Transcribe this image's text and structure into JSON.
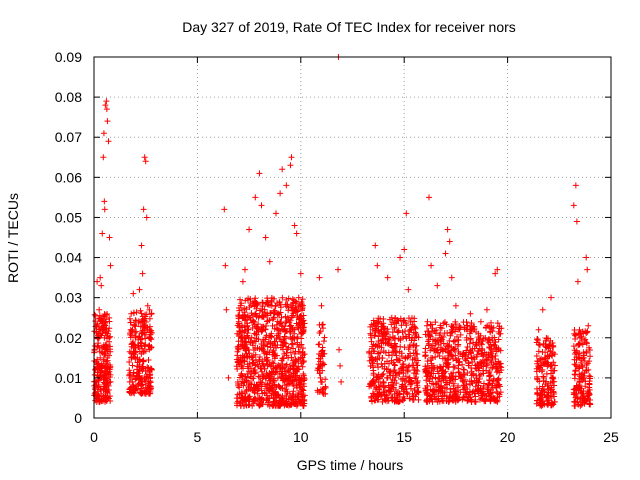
{
  "chart_data": {
    "type": "scatter",
    "title": "Day 327 of 2019, Rate Of TEC Index for receiver nors",
    "xlabel": "GPS time / hours",
    "ylabel": "ROTI / TECUs",
    "xlim": [
      0,
      25
    ],
    "ylim": [
      0,
      0.09
    ],
    "xticks": [
      0,
      5,
      10,
      15,
      20,
      25
    ],
    "xtick_labels": [
      "0",
      "5",
      "10",
      "15",
      "20",
      "25"
    ],
    "yticks": [
      0,
      0.01,
      0.02,
      0.03,
      0.04,
      0.05,
      0.06,
      0.07,
      0.08,
      0.09
    ],
    "ytick_labels": [
      "0",
      "0.01",
      "0.02",
      "0.03",
      "0.04",
      "0.05",
      "0.06",
      "0.07",
      "0.08",
      "0.09"
    ],
    "grid": true,
    "marker": "+",
    "color": "#ff0000",
    "series": [
      {
        "name": "ROTI",
        "points": [
          [
            0.05,
            0.012
          ],
          [
            0.1,
            0.008
          ],
          [
            0.15,
            0.034
          ],
          [
            0.2,
            0.018
          ],
          [
            0.25,
            0.027
          ],
          [
            0.3,
            0.015
          ],
          [
            0.35,
            0.006
          ],
          [
            0.4,
            0.046
          ],
          [
            0.45,
            0.065
          ],
          [
            0.48,
            0.071
          ],
          [
            0.5,
            0.054
          ],
          [
            0.52,
            0.052
          ],
          [
            0.55,
            0.078
          ],
          [
            0.6,
            0.079
          ],
          [
            0.62,
            0.077
          ],
          [
            0.65,
            0.074
          ],
          [
            0.7,
            0.069
          ],
          [
            0.75,
            0.045
          ],
          [
            0.8,
            0.038
          ],
          [
            0.3,
            0.035
          ],
          [
            0.35,
            0.033
          ],
          [
            0.4,
            0.024
          ],
          [
            0.5,
            0.02
          ],
          [
            0.6,
            0.014
          ],
          [
            0.7,
            0.011
          ],
          [
            0.8,
            0.009
          ],
          [
            1.8,
            0.026
          ],
          [
            1.9,
            0.031
          ],
          [
            2.0,
            0.02
          ],
          [
            2.1,
            0.015
          ],
          [
            2.2,
            0.012
          ],
          [
            2.3,
            0.043
          ],
          [
            2.35,
            0.036
          ],
          [
            2.4,
            0.052
          ],
          [
            2.45,
            0.065
          ],
          [
            2.5,
            0.064
          ],
          [
            2.55,
            0.05
          ],
          [
            2.6,
            0.028
          ],
          [
            2.7,
            0.02
          ],
          [
            2.8,
            0.012
          ],
          [
            1.85,
            0.009
          ],
          [
            2.0,
            0.007
          ],
          [
            2.2,
            0.032
          ],
          [
            2.4,
            0.024
          ],
          [
            6.3,
            0.052
          ],
          [
            6.35,
            0.038
          ],
          [
            6.4,
            0.027
          ],
          [
            6.5,
            0.01
          ],
          [
            7.0,
            0.024
          ],
          [
            7.2,
            0.034
          ],
          [
            7.3,
            0.037
          ],
          [
            7.5,
            0.047
          ],
          [
            7.8,
            0.055
          ],
          [
            8.0,
            0.061
          ],
          [
            8.1,
            0.053
          ],
          [
            8.3,
            0.045
          ],
          [
            8.5,
            0.039
          ],
          [
            8.6,
            0.028
          ],
          [
            8.8,
            0.051
          ],
          [
            9.0,
            0.056
          ],
          [
            9.1,
            0.062
          ],
          [
            9.3,
            0.058
          ],
          [
            9.5,
            0.063
          ],
          [
            9.55,
            0.065
          ],
          [
            9.7,
            0.048
          ],
          [
            9.8,
            0.046
          ],
          [
            10.0,
            0.036
          ],
          [
            9.9,
            0.03
          ],
          [
            7.1,
            0.02
          ],
          [
            7.4,
            0.015
          ],
          [
            7.6,
            0.011
          ],
          [
            7.9,
            0.008
          ],
          [
            8.2,
            0.018
          ],
          [
            8.4,
            0.013
          ],
          [
            8.7,
            0.009
          ],
          [
            8.9,
            0.022
          ],
          [
            9.2,
            0.016
          ],
          [
            9.4,
            0.012
          ],
          [
            9.6,
            0.02
          ],
          [
            9.75,
            0.014
          ],
          [
            9.95,
            0.01
          ],
          [
            7.3,
            0.006
          ],
          [
            8.0,
            0.005
          ],
          [
            10.9,
            0.035
          ],
          [
            11.0,
            0.028
          ],
          [
            11.1,
            0.016
          ],
          [
            10.95,
            0.01
          ],
          [
            11.05,
            0.007
          ],
          [
            11.8,
            0.037
          ],
          [
            11.85,
            0.017
          ],
          [
            11.9,
            0.013
          ],
          [
            11.82,
            0.09
          ],
          [
            11.95,
            0.009
          ],
          [
            13.4,
            0.02
          ],
          [
            13.6,
            0.043
          ],
          [
            13.7,
            0.038
          ],
          [
            13.8,
            0.015
          ],
          [
            14.2,
            0.035
          ],
          [
            14.4,
            0.025
          ],
          [
            14.8,
            0.04
          ],
          [
            15.0,
            0.042
          ],
          [
            15.1,
            0.051
          ],
          [
            15.2,
            0.032
          ],
          [
            15.3,
            0.022
          ],
          [
            15.5,
            0.012
          ],
          [
            14.0,
            0.009
          ],
          [
            14.6,
            0.007
          ],
          [
            15.4,
            0.006
          ],
          [
            15.6,
            0.018
          ],
          [
            16.2,
            0.055
          ],
          [
            16.3,
            0.038
          ],
          [
            16.1,
            0.023
          ],
          [
            16.4,
            0.013
          ],
          [
            16.6,
            0.033
          ],
          [
            16.8,
            0.02
          ],
          [
            17.0,
            0.041
          ],
          [
            17.2,
            0.044
          ],
          [
            17.1,
            0.047
          ],
          [
            17.3,
            0.035
          ],
          [
            17.5,
            0.028
          ],
          [
            17.7,
            0.016
          ],
          [
            17.9,
            0.012
          ],
          [
            18.2,
            0.026
          ],
          [
            18.5,
            0.018
          ],
          [
            18.8,
            0.014
          ],
          [
            19.0,
            0.027
          ],
          [
            19.4,
            0.036
          ],
          [
            19.5,
            0.037
          ],
          [
            19.6,
            0.021
          ],
          [
            17.4,
            0.008
          ],
          [
            18.0,
            0.006
          ],
          [
            18.6,
            0.009
          ],
          [
            19.2,
            0.007
          ],
          [
            21.5,
            0.022
          ],
          [
            21.7,
            0.027
          ],
          [
            21.8,
            0.015
          ],
          [
            21.9,
            0.011
          ],
          [
            22.0,
            0.008
          ],
          [
            22.1,
            0.03
          ],
          [
            21.6,
            0.005
          ],
          [
            22.2,
            0.018
          ],
          [
            23.2,
            0.053
          ],
          [
            23.3,
            0.058
          ],
          [
            23.35,
            0.049
          ],
          [
            23.4,
            0.034
          ],
          [
            23.5,
            0.02
          ],
          [
            23.6,
            0.013
          ],
          [
            23.7,
            0.01
          ],
          [
            23.8,
            0.04
          ],
          [
            23.85,
            0.037
          ],
          [
            23.9,
            0.023
          ],
          [
            23.3,
            0.007
          ],
          [
            23.6,
            0.005
          ],
          [
            23.9,
            0.012
          ]
        ]
      }
    ],
    "dense_bands": [
      {
        "x0": 0.0,
        "x1": 0.8,
        "y0": 0.004,
        "y1": 0.026,
        "n": 240
      },
      {
        "x0": 1.7,
        "x1": 2.8,
        "y0": 0.006,
        "y1": 0.027,
        "n": 240
      },
      {
        "x0": 6.9,
        "x1": 10.2,
        "y0": 0.003,
        "y1": 0.03,
        "n": 900
      },
      {
        "x0": 10.8,
        "x1": 11.2,
        "y0": 0.006,
        "y1": 0.024,
        "n": 50
      },
      {
        "x0": 13.3,
        "x1": 15.7,
        "y0": 0.004,
        "y1": 0.025,
        "n": 420
      },
      {
        "x0": 16.0,
        "x1": 19.7,
        "y0": 0.004,
        "y1": 0.024,
        "n": 650
      },
      {
        "x0": 21.4,
        "x1": 22.3,
        "y0": 0.003,
        "y1": 0.02,
        "n": 160
      },
      {
        "x0": 23.2,
        "x1": 24.0,
        "y0": 0.003,
        "y1": 0.022,
        "n": 160
      }
    ]
  }
}
